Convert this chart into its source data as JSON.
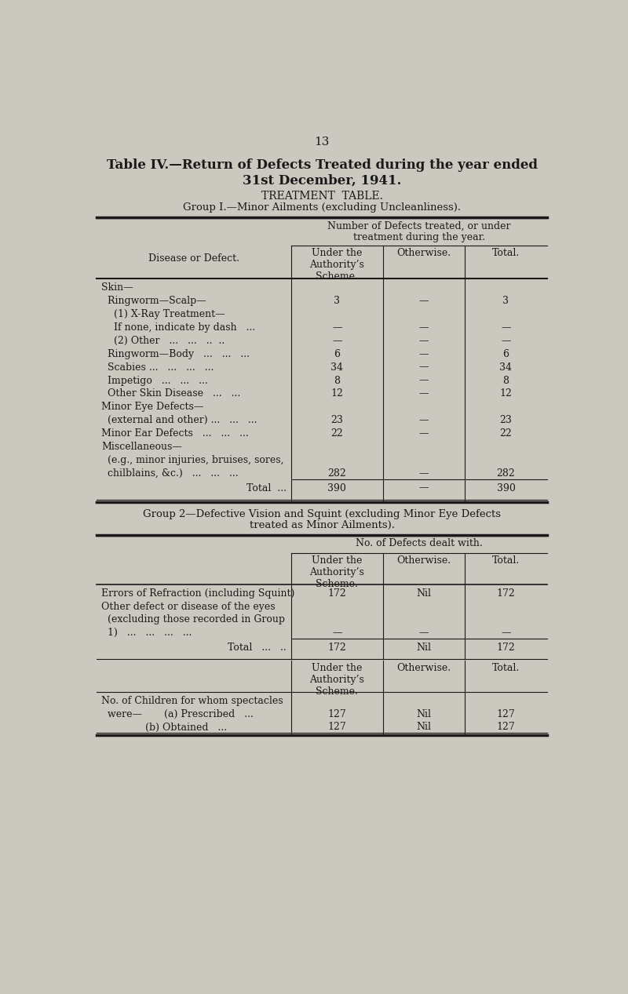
{
  "page_number": "13",
  "title_line1": "Table IV.—Return of Defects Treated during the year ended",
  "title_line2": "31st December, 1941.",
  "subtitle": "TREATMENT  TABLE.",
  "group1_header": "Group I.—Minor Ailments (excluding Uncleanliness).",
  "group1_col_header_main": "Number of Defects treated, or under\ntreatment during the year.",
  "group1_col1_label": "Disease or Defect.",
  "group1_col2_label": "Under the\nAuthority’s\nScheme.",
  "group1_col3_label": "Otherwise.",
  "group1_col4_label": "Total.",
  "group1_rows": [
    [
      "Skin—",
      "",
      "",
      ""
    ],
    [
      "  Ringworm—Scalp—",
      "3",
      "—",
      "3"
    ],
    [
      "    (1) X-Ray Treatment—",
      "",
      "",
      ""
    ],
    [
      "    If none, indicate by dash   ...",
      "—",
      "—",
      "—"
    ],
    [
      "    (2) Other   ...   ...   ..  ..",
      "—",
      "—",
      "—"
    ],
    [
      "  Ringworm—Body   ...   ...   ...",
      "6",
      "—",
      "6"
    ],
    [
      "  Scabies ...   ...   ...   ...",
      "34",
      "—",
      "34"
    ],
    [
      "  Impetigo   ...   ...   ...",
      "8",
      "—",
      "8"
    ],
    [
      "  Other Skin Disease   ...   ...",
      "12",
      "—",
      "12"
    ],
    [
      "Minor Eye Defects—",
      "",
      "",
      ""
    ],
    [
      "  (external and other) ...   ...   ...",
      "23",
      "—",
      "23"
    ],
    [
      "Minor Ear Defects   ...   ...   ...",
      "22",
      "—",
      "22"
    ],
    [
      "Miscellaneous—",
      "",
      "",
      ""
    ],
    [
      "  (e.g., minor injuries, bruises, sores,",
      "",
      "",
      ""
    ],
    [
      "  chilblains, &c.)   ...   ...   ...",
      "282",
      "—",
      "282"
    ]
  ],
  "group1_total_row": [
    "Total  ...",
    "390",
    "—",
    "390"
  ],
  "group2_header_line1": "Group 2—Defective Vision and Squint (excluding Minor Eye Defects",
  "group2_header_line2": "treated as Minor Ailments).",
  "group2_col_header_main": "No. of Defects dealt with.",
  "group2_col2_label": "Under the\nAuthority’s\nScheme.",
  "group2_col3_label": "Otherwise.",
  "group2_col4_label": "Total.",
  "group2_rows": [
    [
      "Errors of Refraction (including Squint)",
      "172",
      "Nil",
      "172"
    ],
    [
      "Other defect or disease of the eyes",
      "",
      "",
      ""
    ],
    [
      "  (excluding those recorded in Group",
      "",
      "",
      ""
    ],
    [
      "  1)   ...   ...   ...   ...",
      "—",
      "—",
      "—"
    ]
  ],
  "group2_total_row": [
    "Total   ...   ..",
    "172",
    "Nil",
    "172"
  ],
  "group3_col2_label": "Under the\nAuthority’s\nScheme.",
  "group3_col3_label": "Otherwise.",
  "group3_col4_label": "Total.",
  "group3_row1_label_line1": "No. of Children for whom spectacles",
  "group3_row1_label_line2": "  were—       (a) Prescribed   ...",
  "group3_row1_vals": [
    "127",
    "Nil",
    "127"
  ],
  "group3_row2_label": "              (b) Obtained   ...",
  "group3_row2_vals": [
    "127",
    "Nil",
    "127"
  ],
  "bg_color": "#cbc8bf",
  "text_color": "#1a1a1a",
  "line_color": "#1a1a1a"
}
